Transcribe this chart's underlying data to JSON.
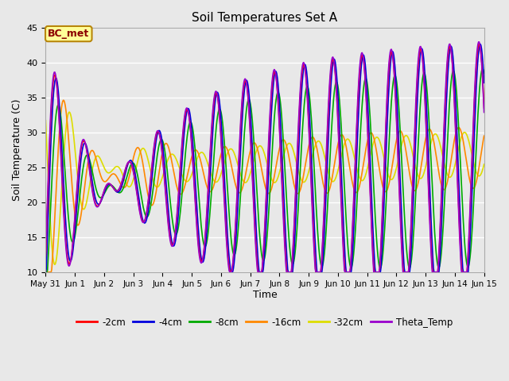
{
  "title": "Soil Temperatures Set A",
  "xlabel": "Time",
  "ylabel": "Soil Temperature (C)",
  "ylim": [
    10,
    45
  ],
  "xlim": [
    0,
    15
  ],
  "fig_facecolor": "#e8e8e8",
  "ax_facecolor": "#e8e8e8",
  "annotation_text": "BC_met",
  "annotation_bg": "#ffff99",
  "annotation_border": "#b8860b",
  "annotation_text_color": "#8b0000",
  "xtick_labels": [
    "May 31",
    "Jun 1",
    "Jun 2",
    "Jun 3",
    "Jun 4",
    "Jun 5",
    "Jun 6",
    "Jun 7",
    "Jun 8",
    "Jun 9",
    "Jun 10",
    "Jun 11",
    "Jun 12",
    "Jun 13",
    "Jun 14",
    "Jun 15"
  ],
  "yticks": [
    10,
    15,
    20,
    25,
    30,
    35,
    40,
    45
  ],
  "series_colors": {
    "-2cm": "#ff0000",
    "-4cm": "#0000dd",
    "-8cm": "#00aa00",
    "-16cm": "#ff8800",
    "-32cm": "#dddd00",
    "Theta_Temp": "#9900cc"
  },
  "legend_labels": [
    "-2cm",
    "-4cm",
    "-8cm",
    "-16cm",
    "-32cm",
    "Theta_Temp"
  ],
  "legend_colors": [
    "#ff0000",
    "#0000dd",
    "#00aa00",
    "#ff8800",
    "#dddd00",
    "#9900cc"
  ],
  "lw": 1.2
}
